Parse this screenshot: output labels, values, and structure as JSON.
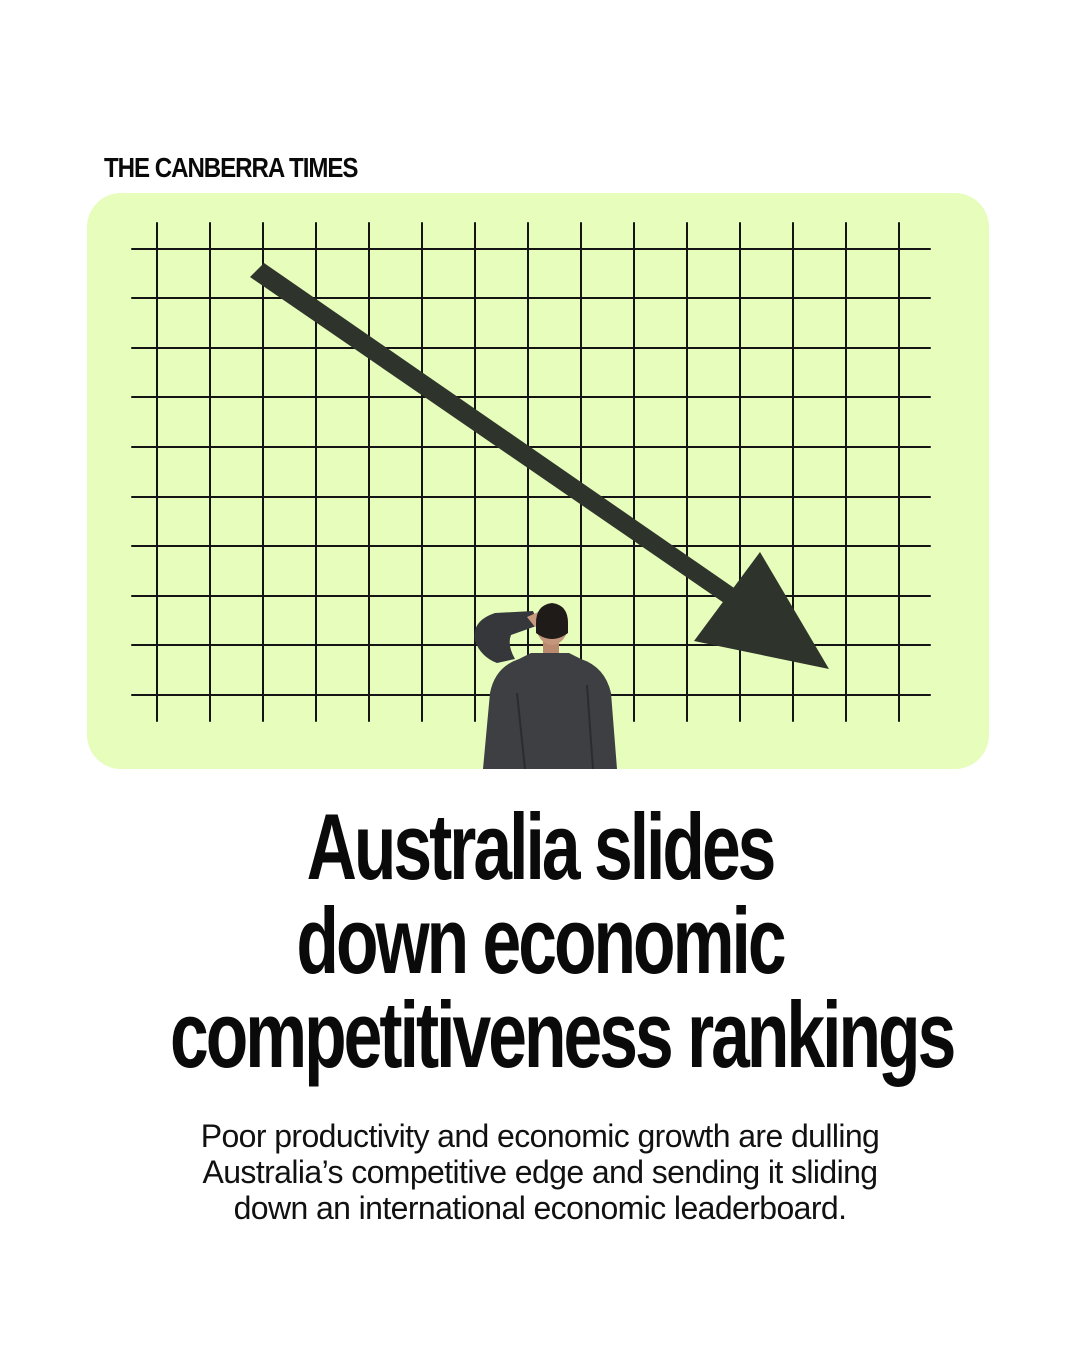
{
  "masthead": {
    "text": "THE CANBERRA TIMES"
  },
  "illustration": {
    "panel_color": "#e6fdbb",
    "grid_color": "#141414",
    "arrow_color": "#2e332b",
    "icon": "downward-trend-arrow-icon",
    "figure": "businessman-figure"
  },
  "headline": {
    "lines": [
      "Australia slides",
      "down economic",
      "competitiveness rankings"
    ]
  },
  "standfirst": {
    "lines": [
      "Poor productivity and economic growth are dulling",
      "Australia’s competitive edge and sending it sliding",
      "down an international economic leaderboard."
    ]
  }
}
